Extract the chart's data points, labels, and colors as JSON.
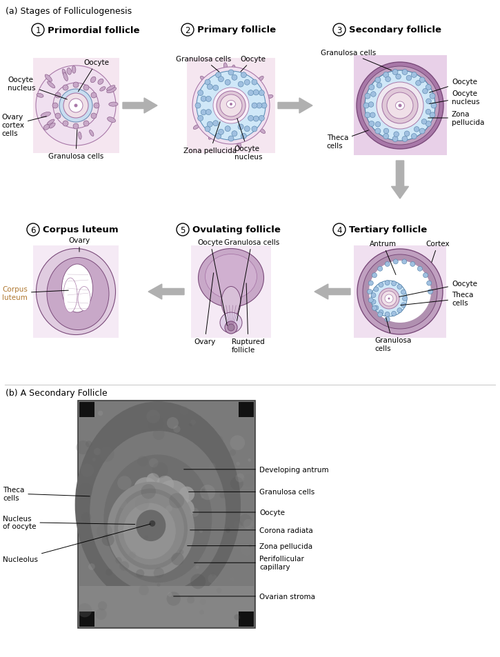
{
  "title_a": "(a) Stages of Folliculogenesis",
  "title_b": "(b) A Secondary Follicle",
  "bg_color": "#ffffff",
  "arrow_color": "#b0b0b0",
  "pink_bg": "#f5e6f0",
  "pink_bg2": "#f0dded",
  "purple_dark": "#7a4a7a",
  "purple_mid": "#a878a8",
  "purple_light": "#c8a8c8",
  "purple_xlght": "#e8d8e8",
  "blue_cells": "#a0c0e0",
  "blue_light": "#d0e8f8",
  "oocyte_color": "#f0e0e8",
  "zona_color": "#e0c8d8",
  "corpus_orange": "#b07830",
  "stage1_title": "Primordial follicle",
  "stage2_title": "Primary follicle",
  "stage3_title": "Secondary follicle",
  "stage4_title": "Tertiary follicle",
  "stage5_title": "Ovulating follicle",
  "stage6_title": "Corpus luteum"
}
